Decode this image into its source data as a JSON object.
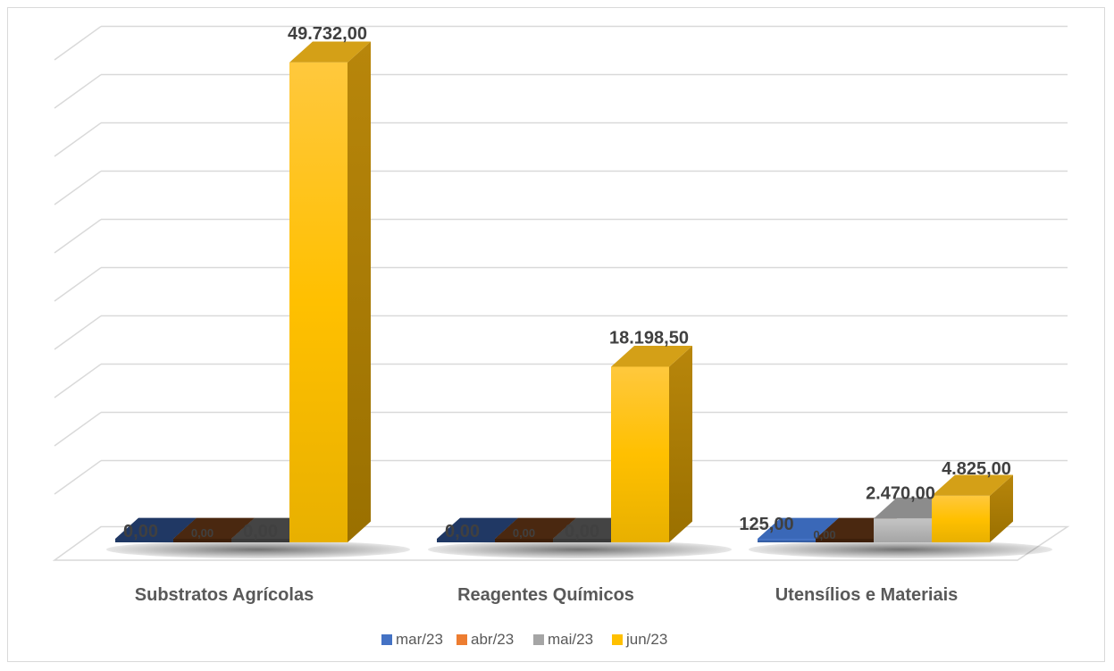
{
  "chart_data": {
    "type": "bar",
    "categories": [
      "Substratos Agrícolas",
      "Reagentes Químicos",
      "Utensílios e Materiais"
    ],
    "series": [
      {
        "name": "mar/23",
        "values": [
          0,
          0,
          125
        ],
        "labels": [
          "0,00",
          "0,00",
          "125,00"
        ],
        "color": "#4472c4"
      },
      {
        "name": "abr/23",
        "values": [
          0,
          0,
          0
        ],
        "labels": [
          "0,00",
          "0,00",
          "0,00"
        ],
        "color": "#ed7d31"
      },
      {
        "name": "mai/23",
        "values": [
          0,
          0,
          2470
        ],
        "labels": [
          "0,00",
          "0,00",
          "2.470,00"
        ],
        "color": "#a5a5a5"
      },
      {
        "name": "jun/23",
        "values": [
          49732,
          18198.5,
          4825
        ],
        "labels": [
          "49.732,00",
          "18.198,50",
          "4.825,00"
        ],
        "color": "#ffc000"
      }
    ],
    "ylim": [
      0,
      50000
    ],
    "grid": true,
    "legend_position": "bottom",
    "style": "3d-clustered-column"
  }
}
